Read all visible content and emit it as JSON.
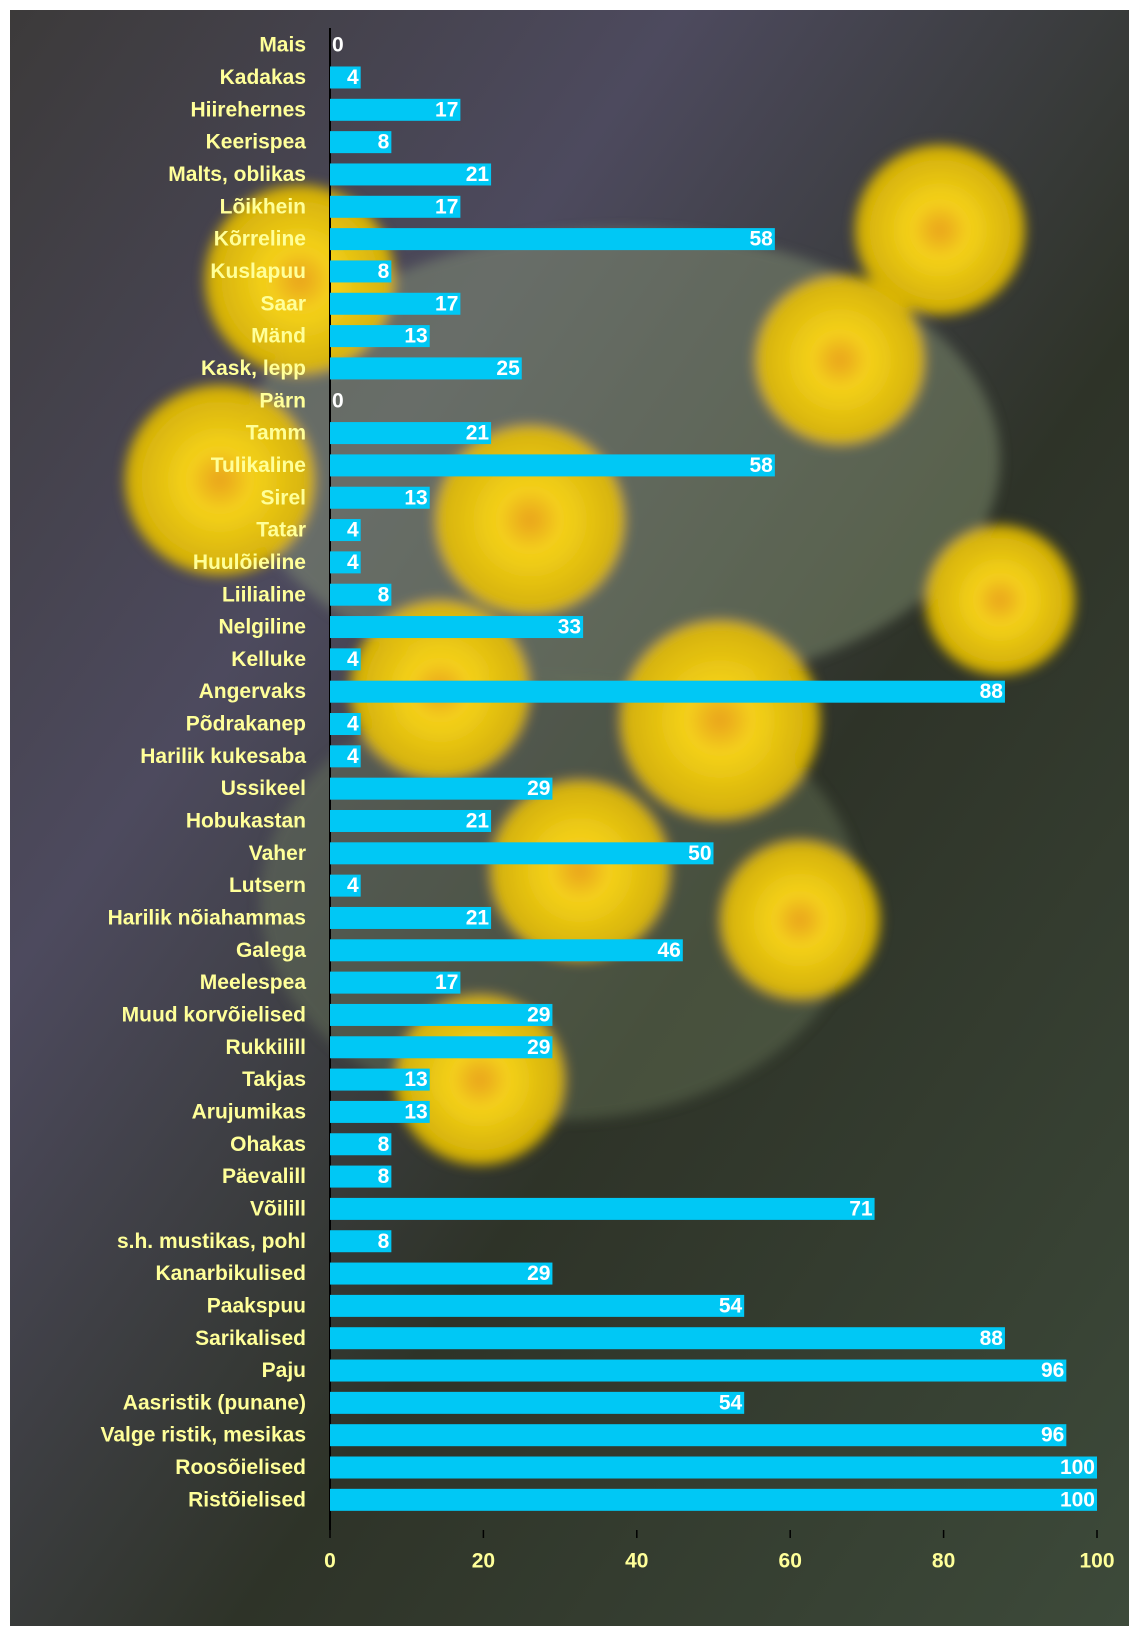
{
  "chart_data": {
    "type": "bar",
    "orientation": "horizontal",
    "categories": [
      "Mais",
      "Kadakas",
      "Hiirehernes",
      "Keerispea",
      "Malts, oblikas",
      "Lõikhein",
      "Kõrreline",
      "Kuslapuu",
      "Saar",
      "Mänd",
      "Kask, lepp",
      "Pärn",
      "Tamm",
      "Tulikaline",
      "Sirel",
      "Tatar",
      "Huulõieline",
      "Liilialine",
      "Nelgiline",
      "Kelluke",
      "Angervaks",
      "Põdrakanep",
      "Harilik kukesaba",
      "Ussikeel",
      "Hobukastan",
      "Vaher",
      "Lutsern",
      "Harilik nõiahammas",
      "Galega",
      "Meelespea",
      "Muud korvõielised",
      "Rukkilill",
      "Takjas",
      "Arujumikas",
      "Ohakas",
      "Päevalill",
      "Võilill",
      "s.h. mustikas, pohl",
      "Kanarbikulised",
      "Paakspuu",
      "Sarikalised",
      "Paju",
      "Aasristik (punane)",
      "Valge ristik, mesikas",
      "Roosõielised",
      "Ristõielised"
    ],
    "values": [
      0,
      4,
      17,
      8,
      21,
      17,
      58,
      8,
      17,
      13,
      25,
      0,
      21,
      58,
      13,
      4,
      4,
      8,
      33,
      4,
      88,
      4,
      4,
      29,
      21,
      50,
      4,
      21,
      46,
      17,
      29,
      29,
      13,
      13,
      8,
      8,
      71,
      8,
      29,
      54,
      88,
      96,
      54,
      96,
      100,
      100
    ],
    "color": "#00c8f5",
    "xlim": [
      0,
      100
    ],
    "xticks": [
      0,
      20,
      40,
      60,
      80,
      100
    ]
  }
}
